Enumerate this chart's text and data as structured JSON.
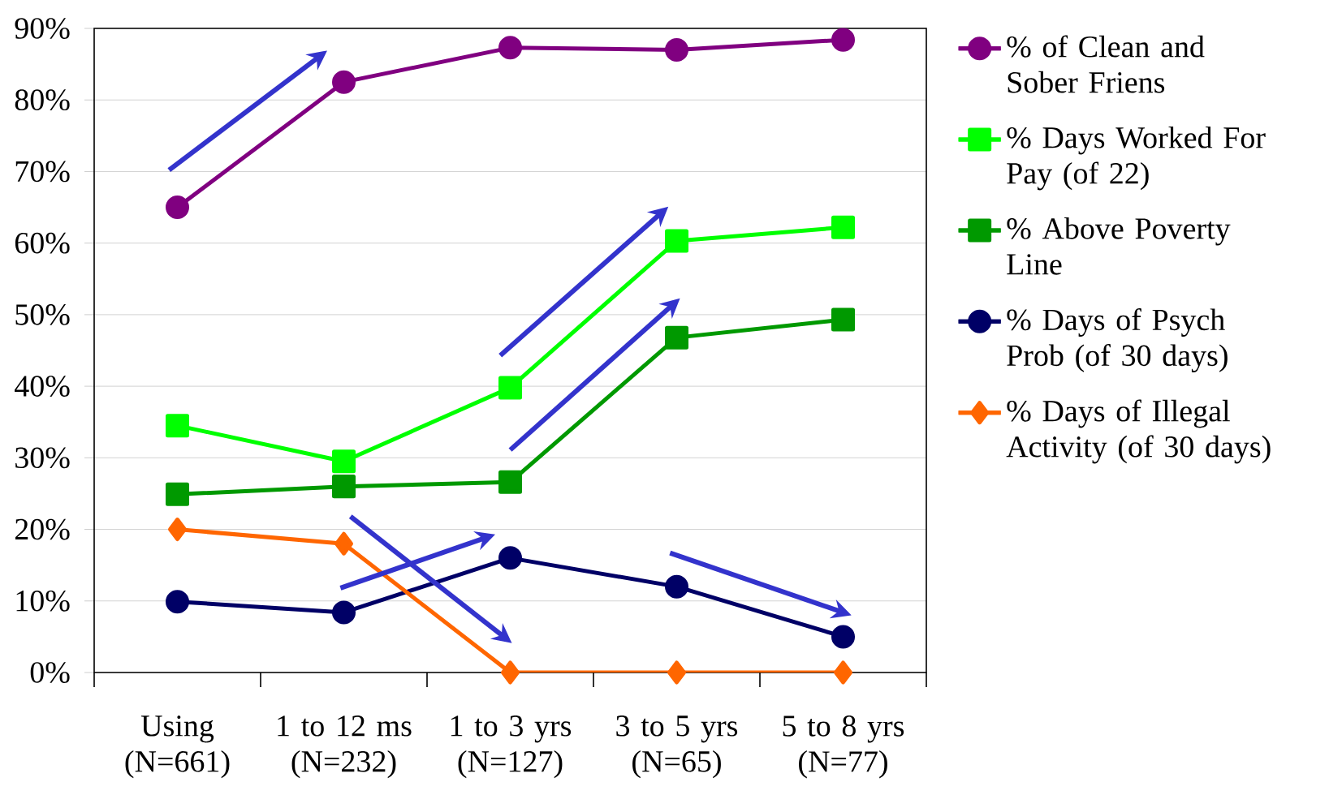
{
  "chart_data": {
    "type": "line",
    "categories": [
      "Using (N=661)",
      "1 to 12 ms (N=232)",
      "1 to 3 yrs (N=127)",
      "3 to 5 yrs (N=65)",
      "5 to 8 yrs (N=77)"
    ],
    "series": [
      {
        "name": "% of Clean and Sober Friens",
        "color": "#800080",
        "marker": "circle",
        "values": [
          65,
          82.5,
          87.3,
          87,
          88.4
        ]
      },
      {
        "name": "% Days Worked For Pay (of 22)",
        "color": "#00ff00",
        "marker": "square",
        "values": [
          34.5,
          29.5,
          39.8,
          60.3,
          62.2
        ]
      },
      {
        "name": "% Above Poverty Line",
        "color": "#009900",
        "marker": "square",
        "values": [
          24.9,
          26,
          26.6,
          46.8,
          49.3
        ]
      },
      {
        "name": "% Days of Psych Prob (of 30 days)",
        "color": "#000066",
        "marker": "circle",
        "values": [
          9.9,
          8.4,
          16,
          12,
          5
        ]
      },
      {
        "name": "% Days of Illegal Activity (of 30 days)",
        "color": "#ff6600",
        "marker": "diamond",
        "values": [
          20,
          18,
          0,
          0,
          0
        ]
      }
    ],
    "ylim": [
      0,
      90
    ],
    "yticks": [
      {
        "value": 0,
        "label": "0%"
      },
      {
        "value": 10,
        "label": "10%"
      },
      {
        "value": 20,
        "label": "20%"
      },
      {
        "value": 30,
        "label": "30%"
      },
      {
        "value": 40,
        "label": "40%"
      },
      {
        "value": 50,
        "label": "50%"
      },
      {
        "value": 60,
        "label": "60%"
      },
      {
        "value": 70,
        "label": "70%"
      },
      {
        "value": 80,
        "label": "80%"
      },
      {
        "value": 90,
        "label": "90%"
      }
    ],
    "grid": "y",
    "legend": "right"
  }
}
